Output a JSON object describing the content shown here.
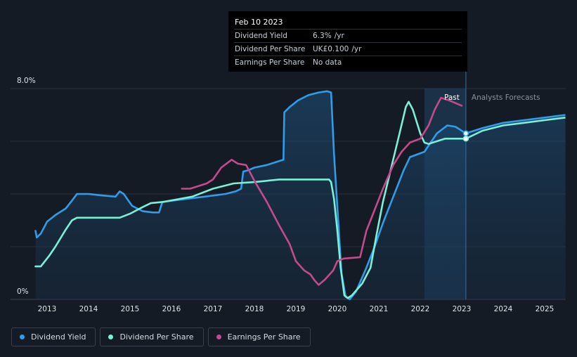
{
  "tooltip": {
    "date": "Feb 10 2023",
    "rows": [
      {
        "label": "Dividend Yield",
        "value": "6.3%",
        "unit": "/yr"
      },
      {
        "label": "Dividend Per Share",
        "value": "UK£0.100",
        "unit": "/yr"
      },
      {
        "label": "Earnings Per Share",
        "value": "No data",
        "unit": ""
      }
    ]
  },
  "colors": {
    "yield": "#2f9de8",
    "dps": "#7af0d8",
    "eps": "#c34b8c",
    "background": "#151b24"
  },
  "legend": [
    {
      "label": "Dividend Yield",
      "color": "#2f9de8"
    },
    {
      "label": "Dividend Per Share",
      "color": "#7af0d8"
    },
    {
      "label": "Earnings Per Share",
      "color": "#c34b8c"
    }
  ],
  "chart_data": {
    "type": "line",
    "ylim": [
      0,
      8
    ],
    "y_ticks": [
      {
        "value": 8,
        "label": "8.0%"
      },
      {
        "value": 0,
        "label": "0%"
      }
    ],
    "xlim": [
      2012.7,
      2025.5
    ],
    "x_ticks": [
      "2013",
      "2014",
      "2015",
      "2016",
      "2017",
      "2018",
      "2019",
      "2020",
      "2021",
      "2022",
      "2023",
      "2024",
      "2025"
    ],
    "past_label": "Past",
    "forecast_label": "Analysts Forecasts",
    "forecast_start": 2023.1,
    "highlight_start": 2022.1,
    "series": [
      {
        "name": "Dividend Yield",
        "key": "yield",
        "points": [
          [
            2012.72,
            2.6
          ],
          [
            2012.75,
            2.35
          ],
          [
            2012.85,
            2.5
          ],
          [
            2013.0,
            2.95
          ],
          [
            2013.2,
            3.2
          ],
          [
            2013.45,
            3.45
          ],
          [
            2013.6,
            3.75
          ],
          [
            2013.72,
            4.0
          ],
          [
            2014.0,
            4.0
          ],
          [
            2014.3,
            3.95
          ],
          [
            2014.65,
            3.9
          ],
          [
            2014.75,
            4.1
          ],
          [
            2014.85,
            4.0
          ],
          [
            2015.05,
            3.55
          ],
          [
            2015.3,
            3.35
          ],
          [
            2015.55,
            3.3
          ],
          [
            2015.7,
            3.3
          ],
          [
            2015.78,
            3.7
          ],
          [
            2016.3,
            3.8
          ],
          [
            2016.8,
            3.9
          ],
          [
            2017.3,
            4.0
          ],
          [
            2017.55,
            4.1
          ],
          [
            2017.68,
            4.2
          ],
          [
            2017.73,
            4.85
          ],
          [
            2017.85,
            4.9
          ],
          [
            2018.0,
            5.0
          ],
          [
            2018.3,
            5.1
          ],
          [
            2018.5,
            5.2
          ],
          [
            2018.7,
            5.3
          ],
          [
            2018.72,
            7.1
          ],
          [
            2018.85,
            7.3
          ],
          [
            2019.05,
            7.55
          ],
          [
            2019.3,
            7.75
          ],
          [
            2019.55,
            7.85
          ],
          [
            2019.75,
            7.9
          ],
          [
            2019.85,
            7.85
          ],
          [
            2019.92,
            5.5
          ],
          [
            2020.02,
            3.0
          ],
          [
            2020.1,
            1.0
          ],
          [
            2020.2,
            0.1
          ],
          [
            2020.3,
            0.0
          ],
          [
            2020.45,
            0.3
          ],
          [
            2020.7,
            1.2
          ],
          [
            2020.9,
            2.0
          ],
          [
            2021.1,
            2.9
          ],
          [
            2021.35,
            3.9
          ],
          [
            2021.6,
            4.9
          ],
          [
            2021.75,
            5.4
          ],
          [
            2022.1,
            5.6
          ],
          [
            2022.4,
            6.3
          ],
          [
            2022.65,
            6.6
          ],
          [
            2022.85,
            6.55
          ],
          [
            2023.1,
            6.3
          ]
        ]
      },
      {
        "name": "Dividend Per Share",
        "key": "dps",
        "points": [
          [
            2012.72,
            1.25
          ],
          [
            2012.85,
            1.25
          ],
          [
            2013.05,
            1.65
          ],
          [
            2013.2,
            2.0
          ],
          [
            2013.45,
            2.65
          ],
          [
            2013.6,
            3.0
          ],
          [
            2013.72,
            3.1
          ],
          [
            2014.2,
            3.1
          ],
          [
            2014.75,
            3.1
          ],
          [
            2015.0,
            3.25
          ],
          [
            2015.3,
            3.5
          ],
          [
            2015.5,
            3.65
          ],
          [
            2015.8,
            3.7
          ],
          [
            2016.5,
            3.9
          ],
          [
            2017.0,
            4.2
          ],
          [
            2017.5,
            4.4
          ],
          [
            2018.0,
            4.45
          ],
          [
            2018.6,
            4.55
          ],
          [
            2019.2,
            4.55
          ],
          [
            2019.8,
            4.55
          ],
          [
            2019.85,
            4.45
          ],
          [
            2019.92,
            3.8
          ],
          [
            2020.0,
            2.6
          ],
          [
            2020.08,
            1.2
          ],
          [
            2020.17,
            0.15
          ],
          [
            2020.25,
            0.05
          ],
          [
            2020.35,
            0.15
          ],
          [
            2020.6,
            0.6
          ],
          [
            2020.8,
            1.2
          ],
          [
            2020.95,
            2.5
          ],
          [
            2021.1,
            3.7
          ],
          [
            2021.3,
            5.0
          ],
          [
            2021.5,
            6.3
          ],
          [
            2021.65,
            7.3
          ],
          [
            2021.72,
            7.5
          ],
          [
            2021.82,
            7.2
          ],
          [
            2021.9,
            6.8
          ],
          [
            2022.0,
            6.3
          ],
          [
            2022.1,
            5.95
          ],
          [
            2022.2,
            5.9
          ],
          [
            2022.4,
            6.0
          ],
          [
            2022.6,
            6.1
          ],
          [
            2023.1,
            6.1
          ]
        ]
      },
      {
        "name": "Earnings Per Share",
        "key": "eps",
        "points": [
          [
            2016.25,
            4.2
          ],
          [
            2016.45,
            4.2
          ],
          [
            2016.65,
            4.3
          ],
          [
            2016.85,
            4.4
          ],
          [
            2017.0,
            4.55
          ],
          [
            2017.2,
            5.0
          ],
          [
            2017.45,
            5.3
          ],
          [
            2017.6,
            5.15
          ],
          [
            2017.8,
            5.1
          ],
          [
            2018.0,
            4.5
          ],
          [
            2018.3,
            3.7
          ],
          [
            2018.6,
            2.8
          ],
          [
            2018.85,
            2.1
          ],
          [
            2019.0,
            1.45
          ],
          [
            2019.2,
            1.1
          ],
          [
            2019.35,
            0.95
          ],
          [
            2019.45,
            0.72
          ],
          [
            2019.55,
            0.55
          ],
          [
            2019.7,
            0.75
          ],
          [
            2019.9,
            1.1
          ],
          [
            2020.0,
            1.45
          ],
          [
            2020.15,
            1.55
          ],
          [
            2020.55,
            1.6
          ],
          [
            2020.7,
            2.6
          ],
          [
            2020.9,
            3.4
          ],
          [
            2021.1,
            4.2
          ],
          [
            2021.35,
            5.1
          ],
          [
            2021.55,
            5.6
          ],
          [
            2021.75,
            5.95
          ],
          [
            2022.0,
            6.1
          ],
          [
            2022.2,
            6.6
          ],
          [
            2022.35,
            7.2
          ],
          [
            2022.5,
            7.65
          ],
          [
            2022.7,
            7.55
          ],
          [
            2023.0,
            7.35
          ]
        ]
      }
    ],
    "forecast_series": [
      {
        "key": "yield",
        "points": [
          [
            2023.1,
            6.3
          ],
          [
            2023.5,
            6.5
          ],
          [
            2024.0,
            6.7
          ],
          [
            2024.5,
            6.8
          ],
          [
            2025.0,
            6.9
          ],
          [
            2025.5,
            7.0
          ]
        ]
      },
      {
        "key": "dps",
        "points": [
          [
            2023.1,
            6.1
          ],
          [
            2023.5,
            6.4
          ],
          [
            2024.0,
            6.6
          ],
          [
            2024.5,
            6.7
          ],
          [
            2025.0,
            6.8
          ],
          [
            2025.5,
            6.9
          ]
        ]
      }
    ]
  }
}
